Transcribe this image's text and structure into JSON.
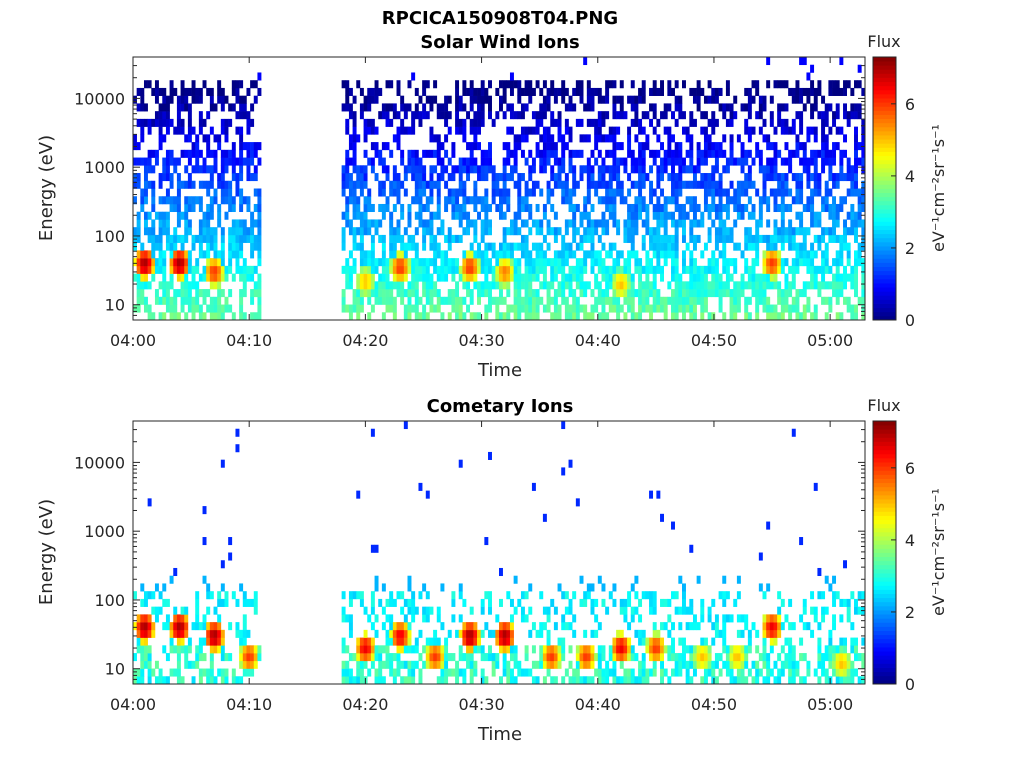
{
  "figure": {
    "title": "RPCICA150908T04.PNG",
    "colorbar_title": "Flux",
    "colorbar_label": "eV⁻¹cm⁻²sr⁻¹s⁻¹",
    "colorbar_ticks": [
      "0",
      "2",
      "4",
      "6"
    ],
    "colorbar_range": [
      0,
      7.3
    ]
  },
  "chart_data": [
    {
      "type": "heatmap",
      "title": "Solar Wind Ions",
      "xlabel": "Time",
      "ylabel": "Energy (eV)",
      "y_scale": "log",
      "ylim": [
        6,
        40000
      ],
      "x_ticks": [
        "04:00",
        "04:10",
        "04:20",
        "04:30",
        "04:40",
        "04:50",
        "05:00"
      ],
      "y_ticks": [
        "10",
        "100",
        "1000",
        "10000"
      ],
      "data_gaps": [
        [
          "04:11",
          "04:18"
        ]
      ],
      "hotspots": [
        {
          "time": "04:01",
          "energy": 40,
          "flux": 7
        },
        {
          "time": "04:04",
          "energy": 40,
          "flux": 7
        },
        {
          "time": "04:07",
          "energy": 30,
          "flux": 6
        },
        {
          "time": "04:20",
          "energy": 22,
          "flux": 5
        },
        {
          "time": "04:23",
          "energy": 35,
          "flux": 6
        },
        {
          "time": "04:29",
          "energy": 35,
          "flux": 6
        },
        {
          "time": "04:32",
          "energy": 30,
          "flux": 5.5
        },
        {
          "time": "04:42",
          "energy": 20,
          "flux": 5
        },
        {
          "time": "04:55",
          "energy": 40,
          "flux": 6
        }
      ],
      "background_flux_high_energy": 1.5,
      "background_flux_low_energy": 3.5
    },
    {
      "type": "heatmap",
      "title": "Cometary Ions",
      "xlabel": "Time",
      "ylabel": "Energy (eV)",
      "y_scale": "log",
      "ylim": [
        6,
        40000
      ],
      "x_ticks": [
        "04:00",
        "04:10",
        "04:20",
        "04:30",
        "04:40",
        "04:50",
        "05:00"
      ],
      "y_ticks": [
        "10",
        "100",
        "1000",
        "10000"
      ],
      "data_gaps": [
        [
          "04:11",
          "04:18"
        ]
      ],
      "hotspots": [
        {
          "time": "04:01",
          "energy": 40,
          "flux": 7
        },
        {
          "time": "04:04",
          "energy": 40,
          "flux": 7
        },
        {
          "time": "04:07",
          "energy": 30,
          "flux": 7
        },
        {
          "time": "04:10",
          "energy": 15,
          "flux": 6
        },
        {
          "time": "04:20",
          "energy": 20,
          "flux": 6.5
        },
        {
          "time": "04:23",
          "energy": 30,
          "flux": 6.5
        },
        {
          "time": "04:26",
          "energy": 15,
          "flux": 6
        },
        {
          "time": "04:29",
          "energy": 30,
          "flux": 7
        },
        {
          "time": "04:32",
          "energy": 30,
          "flux": 7
        },
        {
          "time": "04:36",
          "energy": 15,
          "flux": 6
        },
        {
          "time": "04:39",
          "energy": 15,
          "flux": 6
        },
        {
          "time": "04:42",
          "energy": 20,
          "flux": 6.5
        },
        {
          "time": "04:45",
          "energy": 20,
          "flux": 6
        },
        {
          "time": "04:49",
          "energy": 15,
          "flux": 5
        },
        {
          "time": "04:52",
          "energy": 15,
          "flux": 5
        },
        {
          "time": "04:55",
          "energy": 40,
          "flux": 6.5
        },
        {
          "time": "05:01",
          "energy": 12,
          "flux": 5
        }
      ],
      "background_flux_high_energy": 1.2,
      "background_flux_low_energy": 3
    }
  ]
}
